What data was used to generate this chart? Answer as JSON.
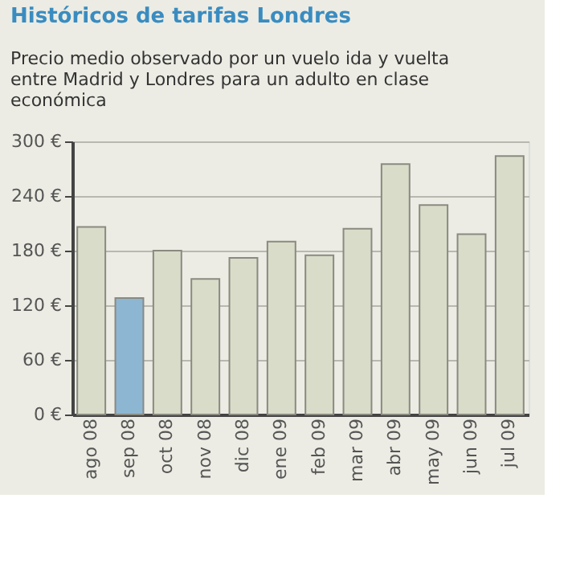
{
  "chart_data": {
    "type": "bar",
    "title": "Históricos de tarifas Londres",
    "subtitle": "Precio medio observado por un vuelo ida y vuelta entre Madrid y Londres para un adulto en clase económica",
    "categories": [
      "ago 08",
      "sep 08",
      "oct 08",
      "nov 08",
      "dic 08",
      "ene 09",
      "feb 09",
      "mar 09",
      "abr 09",
      "may 09",
      "jun 09",
      "jul 09"
    ],
    "values": [
      206,
      128,
      180,
      149,
      172,
      190,
      175,
      204,
      275,
      230,
      198,
      284
    ],
    "colors": [
      "#d9dcc9",
      "#8db6d3",
      "#d9dcc9",
      "#d9dcc9",
      "#d9dcc9",
      "#d9dcc9",
      "#d9dcc9",
      "#d9dcc9",
      "#d9dcc9",
      "#d9dcc9",
      "#d9dcc9",
      "#d9dcc9"
    ],
    "ylim": [
      0,
      300
    ],
    "yticks": [
      {
        "value": 0,
        "label": "0 €"
      },
      {
        "value": 60,
        "label": "60 €"
      },
      {
        "value": 120,
        "label": "120 €"
      },
      {
        "value": 180,
        "label": "180 €"
      },
      {
        "value": 240,
        "label": "240 €"
      },
      {
        "value": 300,
        "label": "300 €"
      }
    ],
    "grid": "y"
  }
}
